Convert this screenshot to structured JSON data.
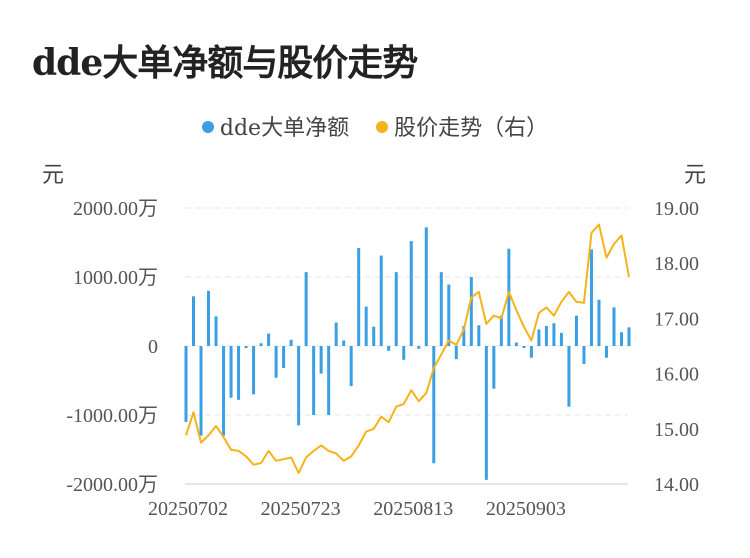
{
  "title": "dde大单净额与股价走势",
  "legend": {
    "series1": "dde大单净额",
    "series2": "股价走势（右）"
  },
  "left_unit": "元",
  "right_unit": "元",
  "colors": {
    "bar": "#3a9fe3",
    "line": "#f5b31b",
    "grid": "#e6e6e6",
    "axis": "#cccccc"
  },
  "chart_data": {
    "type": "bar+line",
    "left_axis": {
      "ticks": [
        2000,
        1000,
        0,
        -1000,
        -2000
      ],
      "tick_labels": [
        "2000.00万",
        "1000.00万",
        "0",
        "-1000.00万",
        "-2000.00万"
      ],
      "range": [
        -2000,
        2000
      ],
      "unit": "元"
    },
    "right_axis": {
      "ticks": [
        19.0,
        18.0,
        17.0,
        16.0,
        15.0,
        14.0
      ],
      "tick_labels": [
        "19.00",
        "18.00",
        "17.00",
        "16.00",
        "15.00",
        "14.00"
      ],
      "range": [
        14.0,
        19.0
      ],
      "unit": "元"
    },
    "x_tick_labels": [
      {
        "index": 0,
        "label": "20250702"
      },
      {
        "index": 15,
        "label": "20250723"
      },
      {
        "index": 30,
        "label": "20250813"
      },
      {
        "index": 45,
        "label": "20250903"
      }
    ],
    "series": [
      {
        "name": "dde大单净额",
        "kind": "bar",
        "axis": "left",
        "values": [
          -1100,
          720,
          -1300,
          800,
          430,
          -1300,
          -750,
          -780,
          -30,
          -700,
          40,
          180,
          -460,
          -320,
          90,
          -1150,
          1070,
          -1000,
          -400,
          -1000,
          340,
          80,
          -580,
          1420,
          570,
          280,
          1310,
          -70,
          1070,
          -200,
          1520,
          -40,
          1720,
          -1700,
          1070,
          890,
          -190,
          290,
          1000,
          300,
          -1940,
          -620,
          440,
          1410,
          50,
          -30,
          -170,
          240,
          290,
          330,
          190,
          -880,
          440,
          -260,
          1400,
          670,
          -170,
          560,
          200,
          270
        ]
      },
      {
        "name": "股价走势（右）",
        "kind": "line",
        "axis": "right",
        "values": [
          14.88,
          15.3,
          14.75,
          14.88,
          15.05,
          14.85,
          14.62,
          14.6,
          14.5,
          14.35,
          14.38,
          14.6,
          14.42,
          14.45,
          14.48,
          14.2,
          14.48,
          14.6,
          14.7,
          14.6,
          14.55,
          14.42,
          14.5,
          14.7,
          14.95,
          15.0,
          15.22,
          15.12,
          15.4,
          15.45,
          15.7,
          15.5,
          15.65,
          16.1,
          16.35,
          16.6,
          16.52,
          16.8,
          17.38,
          17.48,
          16.9,
          17.05,
          17.0,
          17.48,
          17.15,
          16.85,
          16.6,
          17.1,
          17.2,
          17.05,
          17.3,
          17.48,
          17.3,
          17.28,
          18.55,
          18.7,
          18.1,
          18.35,
          18.5,
          17.75
        ]
      }
    ],
    "grid": true,
    "legend_position": "top-center"
  }
}
